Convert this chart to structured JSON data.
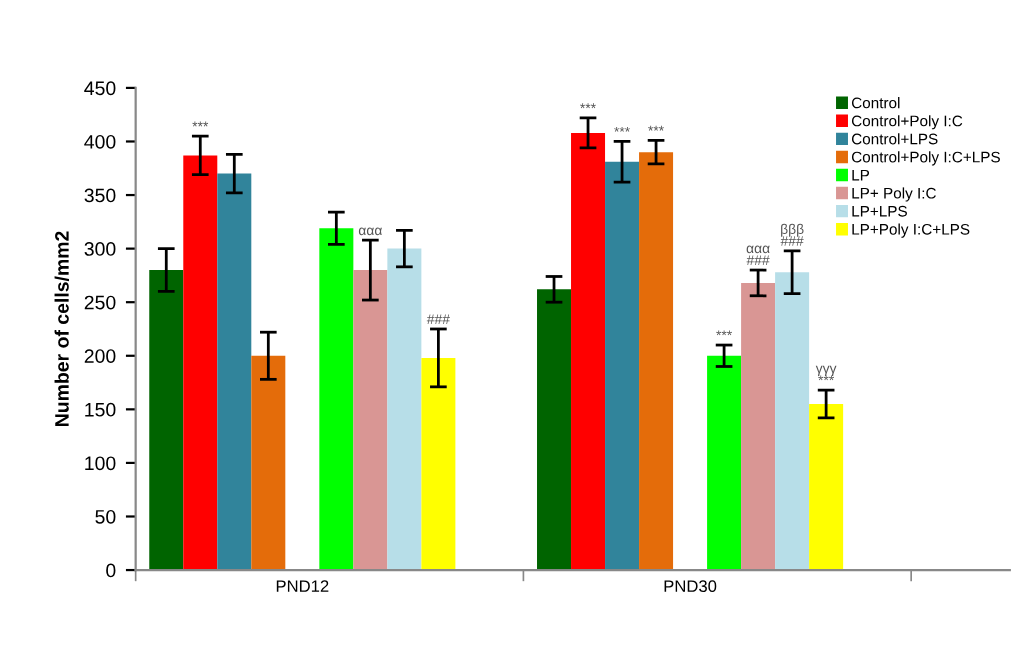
{
  "chart_data": {
    "type": "bar",
    "ylabel": "Number of cells/mm2",
    "categories": [
      "PND12",
      "PND30"
    ],
    "ylim": [
      0,
      450
    ],
    "yticks": [
      0,
      50,
      100,
      150,
      200,
      250,
      300,
      350,
      400,
      450
    ],
    "grid": false,
    "legend": "top right",
    "series": [
      {
        "name": "Control",
        "color": "#006400",
        "values": [
          280,
          262
        ],
        "errors": [
          20,
          12
        ],
        "value_labels": [
          null,
          null
        ]
      },
      {
        "name": "Control+Poly I:C",
        "color": "#ff0000",
        "values": [
          387,
          408
        ],
        "errors": [
          18,
          14
        ],
        "value_labels": [
          "***",
          "***"
        ]
      },
      {
        "name": "Control+LPS",
        "color": "#31849b",
        "values": [
          370,
          381
        ],
        "errors": [
          18,
          19
        ],
        "value_labels": [
          null,
          "***"
        ]
      },
      {
        "name": "Control+Poly I:C+LPS",
        "color": "#e46c0a",
        "values": [
          200,
          390
        ],
        "errors": [
          22,
          11
        ],
        "value_labels": [
          null,
          "***"
        ]
      },
      {
        "name": "LP",
        "color": "#00ff00",
        "values": [
          319,
          200
        ],
        "errors": [
          15,
          10
        ],
        "value_labels": [
          null,
          "***"
        ]
      },
      {
        "name": "LP+ Poly I:C",
        "color": "#d99694",
        "values": [
          280,
          268
        ],
        "errors": [
          28,
          12
        ],
        "value_labels": [
          "ααα",
          "ααα\n###"
        ]
      },
      {
        "name": "LP+LPS",
        "color": "#b7dee8",
        "values": [
          300,
          278
        ],
        "errors": [
          17,
          20
        ],
        "value_labels": [
          null,
          "βββ\n###"
        ]
      },
      {
        "name": "LP+Poly I:C+LPS",
        "color": "#ffff00",
        "values": [
          198,
          155
        ],
        "errors": [
          27,
          13
        ],
        "value_labels": [
          "###",
          "γγγ\n***"
        ]
      }
    ]
  }
}
